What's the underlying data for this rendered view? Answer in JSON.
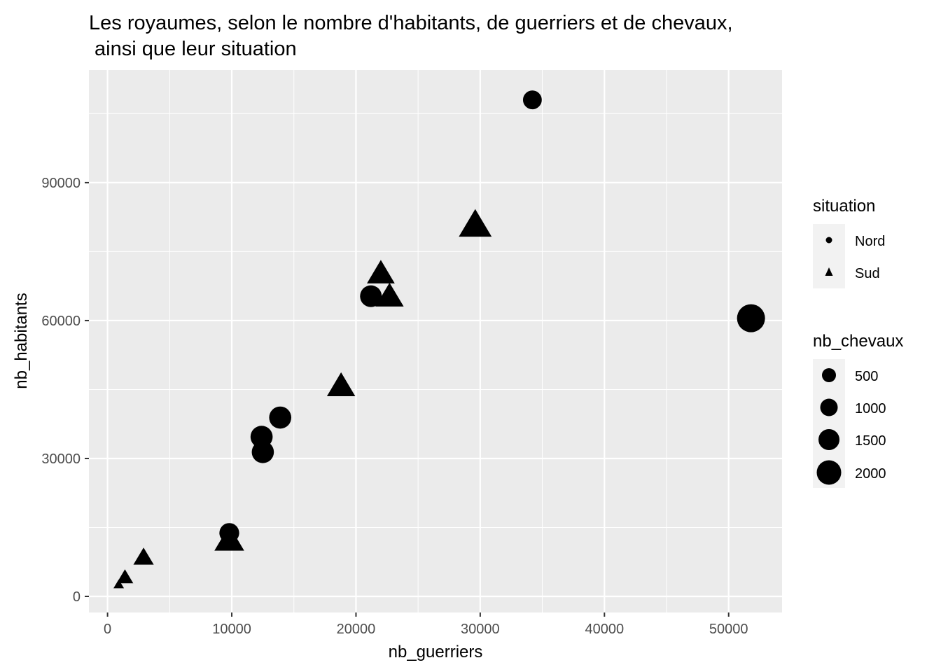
{
  "chart_data": {
    "type": "scatter",
    "title_line1": "Les royaumes, selon le nombre d'habitants, de guerriers et de chevaux,",
    "title_line2": " ainsi que leur situation",
    "xlabel": "nb_guerriers",
    "ylabel": "nb_habitants",
    "xlim": [
      -1500,
      54300
    ],
    "ylim": [
      -3500,
      114500
    ],
    "x_ticks": [
      0,
      10000,
      20000,
      30000,
      40000,
      50000
    ],
    "x_tick_labels": [
      "0",
      "10000",
      "20000",
      "30000",
      "40000",
      "50000"
    ],
    "y_ticks": [
      0,
      30000,
      60000,
      90000
    ],
    "y_tick_labels": [
      "0",
      "30000",
      "60000",
      "90000"
    ],
    "grid": true,
    "background": "#ebebeb",
    "point_color": "#000000",
    "legend_position": "right",
    "shape_legend": {
      "title": "situation",
      "items": [
        {
          "label": "Nord",
          "shape": "circle"
        },
        {
          "label": "Sud",
          "shape": "triangle"
        }
      ]
    },
    "size_legend": {
      "title": "nb_chevaux",
      "items": [
        {
          "label": "500",
          "value": 500
        },
        {
          "label": "1000",
          "value": 1000
        },
        {
          "label": "1500",
          "value": 1500
        },
        {
          "label": "2000",
          "value": 2000
        }
      ]
    },
    "points": [
      {
        "x": 34200,
        "y": 108000,
        "situation": "Nord",
        "nb_chevaux": 900
      },
      {
        "x": 29600,
        "y": 80500,
        "situation": "Sud",
        "nb_chevaux": 1950
      },
      {
        "x": 22000,
        "y": 70000,
        "situation": "Sud",
        "nb_chevaux": 1400
      },
      {
        "x": 21200,
        "y": 65300,
        "situation": "Nord",
        "nb_chevaux": 1200
      },
      {
        "x": 22700,
        "y": 65000,
        "situation": "Sud",
        "nb_chevaux": 1450
      },
      {
        "x": 51800,
        "y": 60500,
        "situation": "Nord",
        "nb_chevaux": 2000
      },
      {
        "x": 18800,
        "y": 45500,
        "situation": "Sud",
        "nb_chevaux": 1450
      },
      {
        "x": 13900,
        "y": 38900,
        "situation": "Nord",
        "nb_chevaux": 1250
      },
      {
        "x": 12400,
        "y": 34700,
        "situation": "Nord",
        "nb_chevaux": 1250
      },
      {
        "x": 12500,
        "y": 31400,
        "situation": "Nord",
        "nb_chevaux": 1250
      },
      {
        "x": 9800,
        "y": 13800,
        "situation": "Nord",
        "nb_chevaux": 1000
      },
      {
        "x": 9800,
        "y": 12000,
        "situation": "Sud",
        "nb_chevaux": 1600
      },
      {
        "x": 2900,
        "y": 8300,
        "situation": "Sud",
        "nb_chevaux": 750
      },
      {
        "x": 1400,
        "y": 4000,
        "situation": "Sud",
        "nb_chevaux": 500
      },
      {
        "x": 900,
        "y": 2500,
        "situation": "Sud",
        "nb_chevaux": 200
      }
    ]
  }
}
